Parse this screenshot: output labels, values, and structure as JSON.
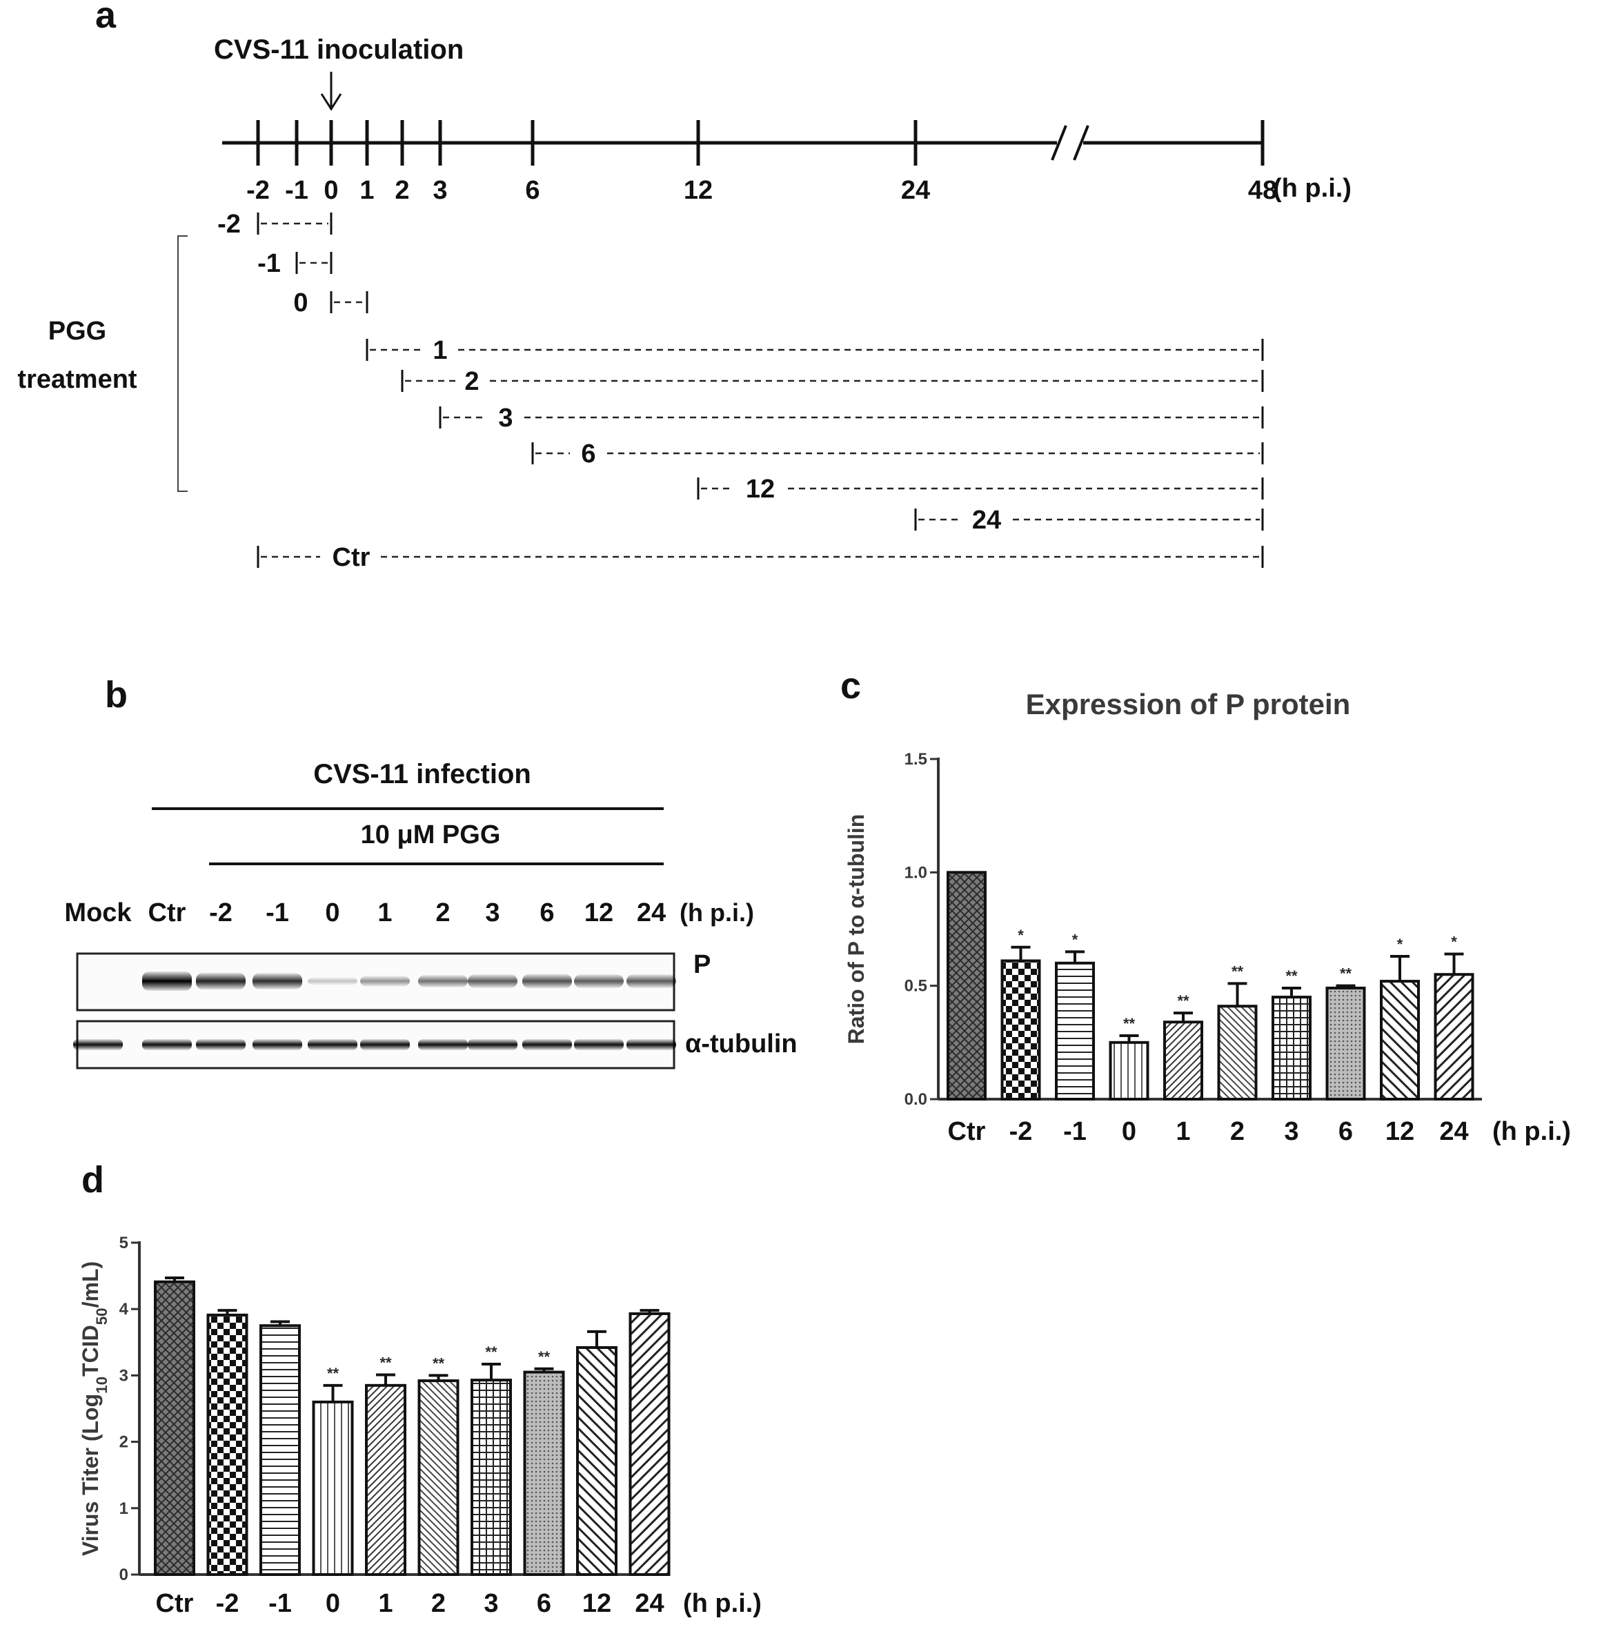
{
  "panel_a": {
    "letter": "a",
    "inoculation_label": "CVS-11 inoculation",
    "ticks": [
      "-2",
      "-1",
      "0",
      "1",
      "2",
      "3",
      "6",
      "12",
      "24",
      "48"
    ],
    "unit": "(h p.i.)",
    "treatment_label_1": "PGG",
    "treatment_label_2": "treatment",
    "rows": [
      "-2",
      "-1",
      "0",
      "1",
      "2",
      "3",
      "6",
      "12",
      "24",
      "Ctr"
    ]
  },
  "panel_b": {
    "letter": "b",
    "infection_label": "CVS-11 infection",
    "dose_label": "10 μM PGG",
    "lanes": [
      "Mock",
      "Ctr",
      "-2",
      "-1",
      "0",
      "1",
      "2",
      "3",
      "6",
      "12",
      "24"
    ],
    "unit": "(h p.i.)",
    "blot_labels": [
      "P",
      "α-tubulin"
    ],
    "p_band_intensity": [
      0.0,
      1.0,
      0.8,
      0.75,
      0.08,
      0.3,
      0.45,
      0.55,
      0.6,
      0.55,
      0.55
    ]
  },
  "chart_data": [
    {
      "panel": "c",
      "type": "bar",
      "title": "Expression of P protein",
      "ylabel": "Ratio of P to α-tubulin",
      "xlabel": "",
      "unit_label": "(h p.i.)",
      "categories": [
        "Ctr",
        "-2",
        "-1",
        "0",
        "1",
        "2",
        "3",
        "6",
        "12",
        "24"
      ],
      "values": [
        1.0,
        0.61,
        0.6,
        0.25,
        0.34,
        0.41,
        0.45,
        0.49,
        0.52,
        0.55
      ],
      "errors": [
        0.0,
        0.06,
        0.05,
        0.03,
        0.04,
        0.1,
        0.04,
        0.01,
        0.11,
        0.09
      ],
      "significance": [
        "",
        "*",
        "*",
        "**",
        "**",
        "**",
        "**",
        "**",
        "*",
        "*"
      ],
      "ylim": [
        0,
        1.5
      ],
      "yticks": [
        "0.0",
        "0.5",
        "1.0",
        "1.5"
      ],
      "ytick_values": [
        0,
        0.5,
        1.0,
        1.5
      ],
      "grid": false
    },
    {
      "panel": "d",
      "type": "bar",
      "title": "",
      "ylabel": "Virus Titer (Log10TCID50/mL)",
      "xlabel": "",
      "unit_label": "(h p.i.)",
      "categories": [
        "Ctr",
        "-2",
        "-1",
        "0",
        "1",
        "2",
        "3",
        "6",
        "12",
        "24"
      ],
      "values": [
        4.41,
        3.91,
        3.75,
        2.6,
        2.85,
        2.92,
        2.93,
        3.05,
        3.42,
        3.93
      ],
      "errors": [
        0.06,
        0.07,
        0.06,
        0.25,
        0.16,
        0.08,
        0.24,
        0.05,
        0.24,
        0.05
      ],
      "significance": [
        "",
        "",
        "",
        "**",
        "**",
        "**",
        "**",
        "**",
        "",
        ""
      ],
      "ylim": [
        0,
        5
      ],
      "yticks": [
        "0",
        "1",
        "2",
        "3",
        "4",
        "5"
      ],
      "ytick_values": [
        0,
        1,
        2,
        3,
        4,
        5
      ],
      "grid": false
    }
  ]
}
